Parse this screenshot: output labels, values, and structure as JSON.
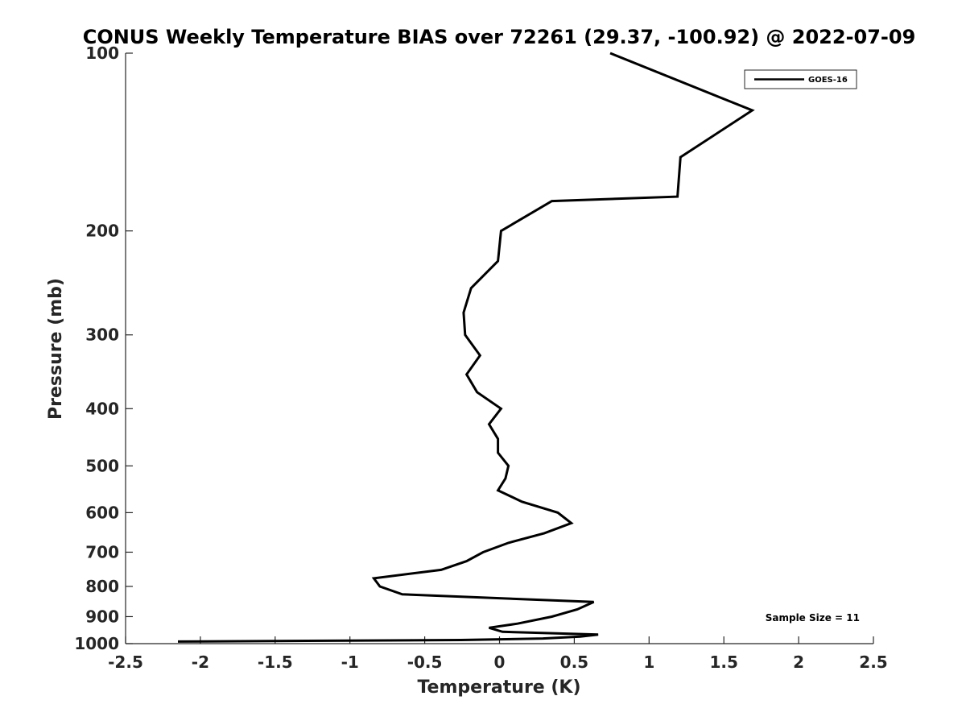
{
  "chart_data": {
    "type": "line",
    "title": "CONUS Weekly Temperature BIAS over 72261 (29.37, -100.92) @ 2022-07-09",
    "xlabel": "Temperature (K)",
    "ylabel": "Pressure (mb)",
    "xlim": [
      -2.5,
      2.5
    ],
    "ylim": [
      100,
      1000
    ],
    "y_scale": "log",
    "y_reversed": true,
    "grid": false,
    "legend_position": "top-right",
    "x_ticks": [
      -2.5,
      -2,
      -1.5,
      -1,
      -0.5,
      0,
      0.5,
      1,
      1.5,
      2,
      2.5
    ],
    "x_tick_labels": [
      "-2.5",
      "-2",
      "-1.5",
      "-1",
      "-0.5",
      "0",
      "0.5",
      "1",
      "1.5",
      "2",
      "2.5"
    ],
    "y_ticks": [
      100,
      200,
      300,
      400,
      500,
      600,
      700,
      800,
      900,
      1000
    ],
    "y_tick_labels": [
      "100",
      "200",
      "300",
      "400",
      "500",
      "600",
      "700",
      "800",
      "900",
      "1000"
    ],
    "annotation": "Sample Size = 11",
    "series": [
      {
        "name": "GOES-16",
        "color": "#000000",
        "points": [
          {
            "t": 0.74,
            "p": 100
          },
          {
            "t": 1.69,
            "p": 125
          },
          {
            "t": 1.21,
            "p": 150
          },
          {
            "t": 1.19,
            "p": 175
          },
          {
            "t": 0.35,
            "p": 178
          },
          {
            "t": 0.01,
            "p": 200
          },
          {
            "t": -0.01,
            "p": 225
          },
          {
            "t": -0.19,
            "p": 250
          },
          {
            "t": -0.24,
            "p": 275
          },
          {
            "t": -0.23,
            "p": 300
          },
          {
            "t": -0.13,
            "p": 325
          },
          {
            "t": -0.22,
            "p": 350
          },
          {
            "t": -0.15,
            "p": 375
          },
          {
            "t": 0.01,
            "p": 400
          },
          {
            "t": -0.07,
            "p": 425
          },
          {
            "t": -0.01,
            "p": 450
          },
          {
            "t": -0.01,
            "p": 475
          },
          {
            "t": 0.06,
            "p": 500
          },
          {
            "t": 0.04,
            "p": 525
          },
          {
            "t": -0.01,
            "p": 550
          },
          {
            "t": 0.15,
            "p": 575
          },
          {
            "t": 0.39,
            "p": 600
          },
          {
            "t": 0.48,
            "p": 625
          },
          {
            "t": 0.3,
            "p": 650
          },
          {
            "t": 0.06,
            "p": 675
          },
          {
            "t": -0.11,
            "p": 700
          },
          {
            "t": -0.22,
            "p": 725
          },
          {
            "t": -0.39,
            "p": 750
          },
          {
            "t": -0.84,
            "p": 775
          },
          {
            "t": -0.8,
            "p": 800
          },
          {
            "t": -0.65,
            "p": 825
          },
          {
            "t": 0.63,
            "p": 850
          },
          {
            "t": 0.52,
            "p": 875
          },
          {
            "t": 0.35,
            "p": 900
          },
          {
            "t": 0.12,
            "p": 925
          },
          {
            "t": -0.07,
            "p": 940
          },
          {
            "t": 0.02,
            "p": 955
          },
          {
            "t": 0.66,
            "p": 965
          },
          {
            "t": 0.54,
            "p": 973
          },
          {
            "t": 0.29,
            "p": 980
          },
          {
            "t": -0.26,
            "p": 986
          },
          {
            "t": -2.15,
            "p": 992
          }
        ]
      }
    ]
  }
}
